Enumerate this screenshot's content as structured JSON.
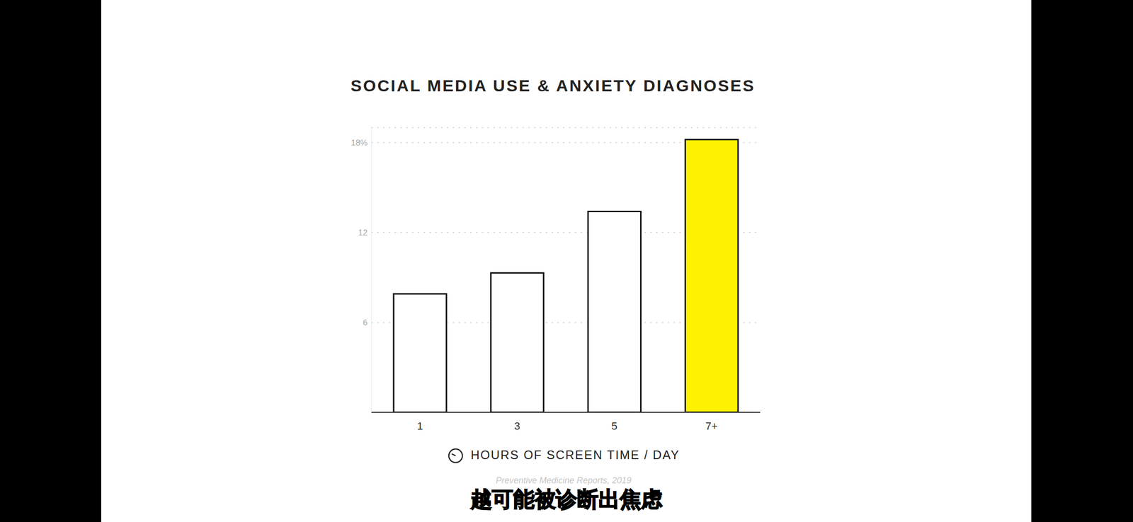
{
  "chart_data": {
    "type": "bar",
    "title": "SOCIAL MEDIA USE & ANXIETY DIAGNOSES",
    "x_label": "HOURS OF SCREEN TIME / DAY",
    "source": "Preventive Medicine Reports, 2019",
    "caption": "越可能被诊断出焦虑",
    "categories": [
      "1",
      "3",
      "5",
      "7+"
    ],
    "values": [
      7.9,
      9.3,
      13.4,
      18.2
    ],
    "colors": [
      "#ffffff",
      "#ffffff",
      "#ffffff",
      "#fff200"
    ],
    "ylim": [
      0,
      19
    ],
    "yticks": [
      6,
      12,
      {
        "value": 18,
        "label": "18%"
      }
    ],
    "grid": true
  }
}
